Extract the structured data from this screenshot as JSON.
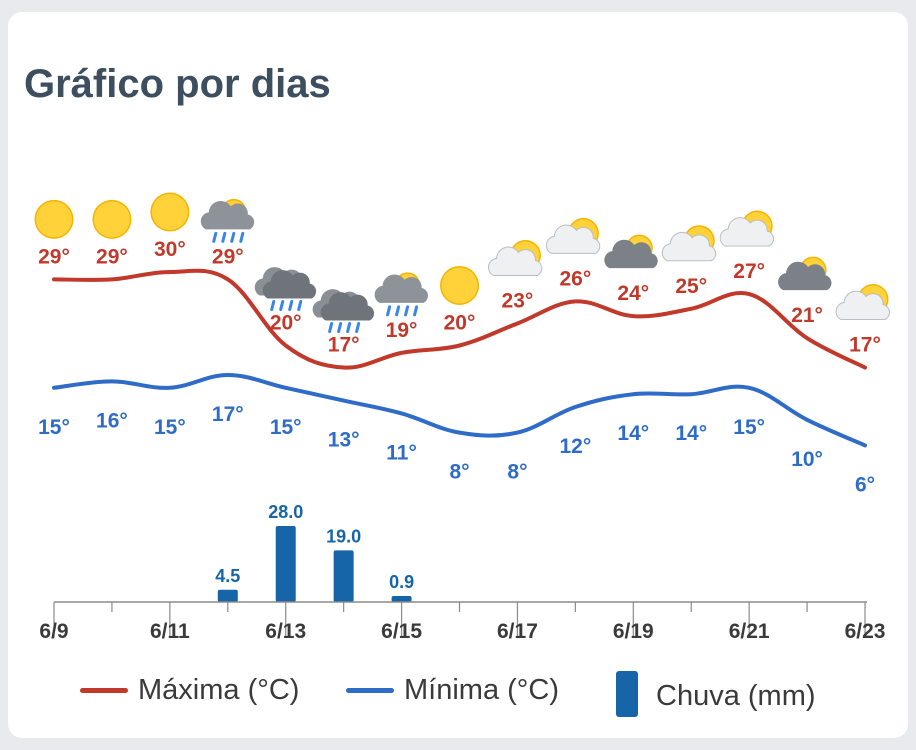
{
  "title": "Gráfico por dias",
  "colors": {
    "max": "#c0392b",
    "min": "#2e6cc7",
    "rain": "#1565a8",
    "title": "#3d4f5f",
    "axis": "#8a8a8a"
  },
  "legend": {
    "max_label": "Máxima (°C)",
    "min_label": "Mínima (°C)",
    "rain_label": "Chuva (mm)"
  },
  "chart_data": {
    "type": "line",
    "x": [
      "6/9",
      "6/10",
      "6/11",
      "6/12",
      "6/13",
      "6/14",
      "6/15",
      "6/16",
      "6/17",
      "6/18",
      "6/19",
      "6/20",
      "6/21",
      "6/22",
      "6/23"
    ],
    "x_tick_labels": [
      "6/9",
      "6/11",
      "6/13",
      "6/15",
      "6/17",
      "6/19",
      "6/21",
      "6/23"
    ],
    "series": [
      {
        "name": "Máxima (°C)",
        "values": [
          29,
          29,
          30,
          29,
          20,
          17,
          19,
          20,
          23,
          26,
          24,
          25,
          27,
          21,
          17
        ],
        "labels": [
          "29°",
          "29°",
          "30°",
          "29°",
          "20°",
          "17°",
          "19°",
          "20°",
          "23°",
          "26°",
          "24°",
          "25°",
          "27°",
          "21°",
          "17°"
        ]
      },
      {
        "name": "Mínima (°C)",
        "values": [
          15,
          16,
          15,
          17,
          15,
          13,
          11,
          8,
          8,
          12,
          14,
          14,
          15,
          10,
          6
        ],
        "labels": [
          "15°",
          "16°",
          "15°",
          "17°",
          "15°",
          "13°",
          "11°",
          "8°",
          "8°",
          "12°",
          "14°",
          "14°",
          "15°",
          "10°",
          "6°"
        ]
      },
      {
        "name": "Chuva (mm)",
        "type": "bar",
        "values": [
          0,
          0,
          0,
          4.5,
          28.0,
          19.0,
          0.9,
          0,
          0,
          0,
          0,
          0,
          0,
          0,
          0
        ],
        "labels": [
          "",
          "",
          "",
          "4.5",
          "28.0",
          "19.0",
          "0.9",
          "",
          "",
          "",
          "",
          "",
          "",
          "",
          ""
        ]
      }
    ],
    "weather_icons": [
      "sun-icon",
      "sun-icon",
      "sun-icon",
      "rain-sun-icon",
      "rain-cloud-icon",
      "rain-cloud-icon",
      "rain-sun-icon",
      "sun-icon",
      "partly-cloudy-icon",
      "partly-cloudy-icon",
      "cloudy-sun-icon",
      "partly-cloudy-icon",
      "partly-cloudy-icon",
      "cloudy-sun-icon",
      "partly-cloudy-icon"
    ],
    "legend_position": "bottom",
    "grid": false
  }
}
